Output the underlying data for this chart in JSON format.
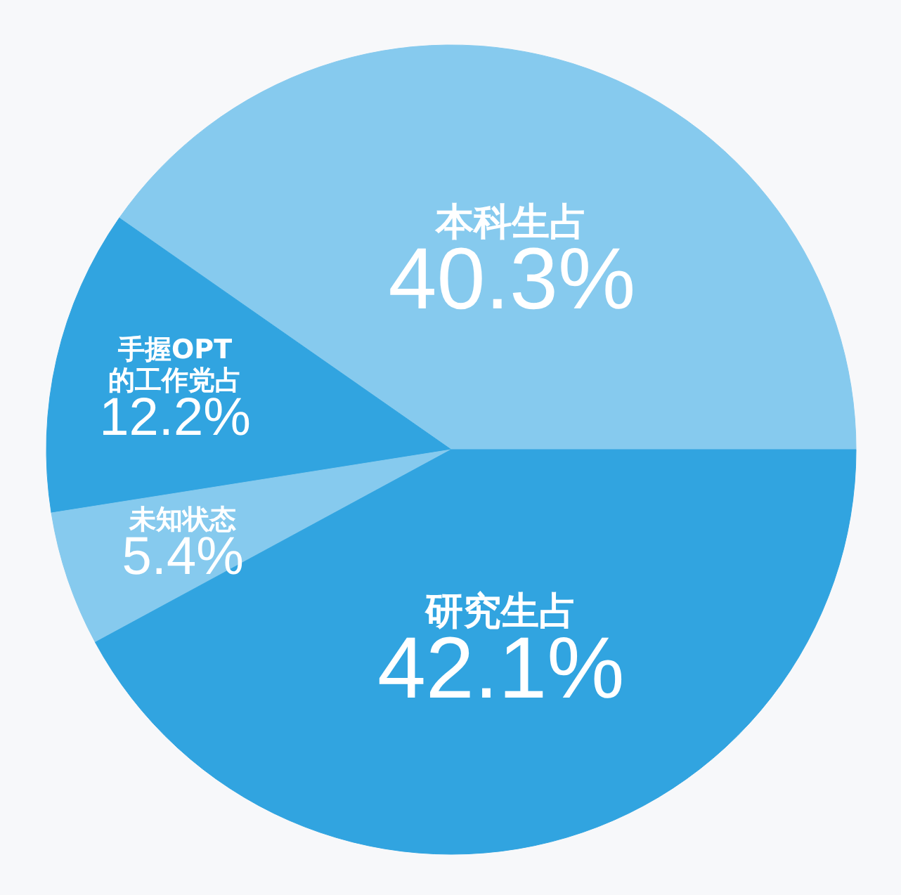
{
  "chart_data": {
    "type": "pie",
    "categories": [
      "本科生占",
      "手握OPT的工作党占",
      "未知状态",
      "研究生占"
    ],
    "values": [
      40.3,
      12.2,
      5.4,
      42.1
    ],
    "value_labels": [
      "40.3%",
      "12.2%",
      "5.4%",
      "42.1%"
    ],
    "colors": [
      "#86caee",
      "#31a4e0",
      "#86caee",
      "#31a4e0"
    ]
  }
}
